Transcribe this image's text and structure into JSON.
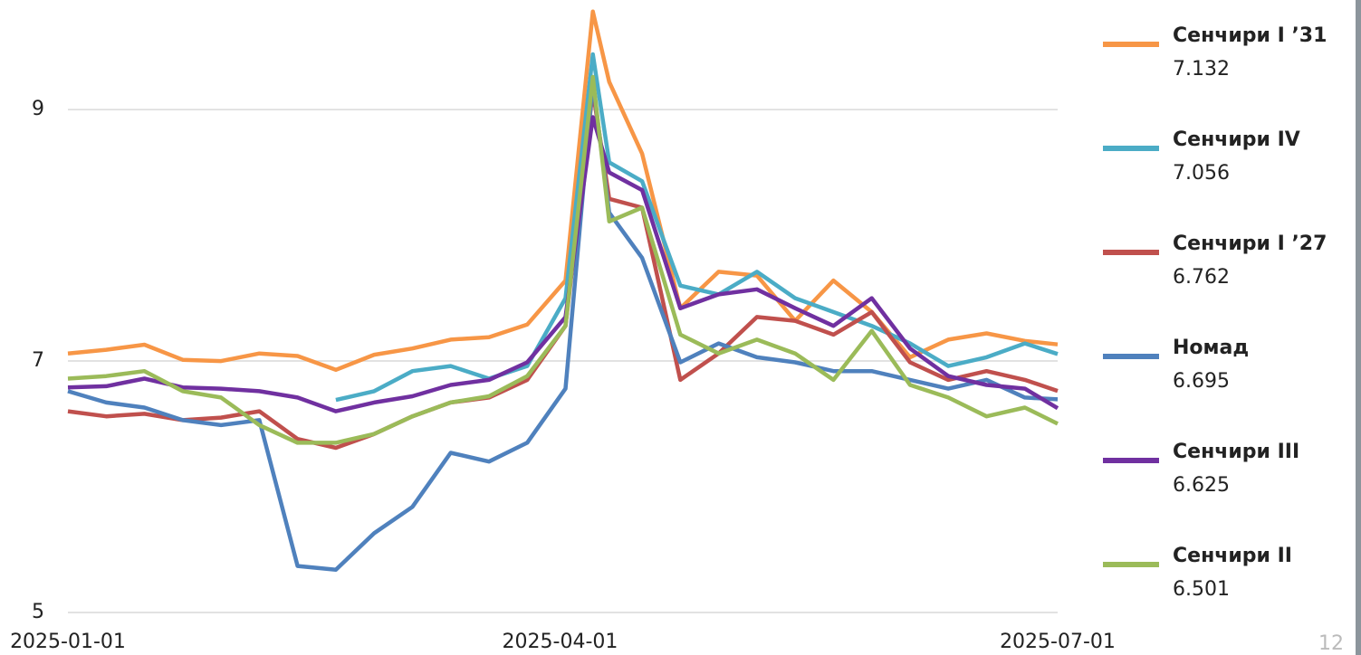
{
  "chart_data": {
    "type": "line",
    "x": [
      "2025-01-01",
      "2025-01-08",
      "2025-01-15",
      "2025-01-22",
      "2025-01-29",
      "2025-02-05",
      "2025-02-12",
      "2025-02-19",
      "2025-02-26",
      "2025-03-05",
      "2025-03-12",
      "2025-03-19",
      "2025-03-26",
      "2025-04-02",
      "2025-04-07",
      "2025-04-10",
      "2025-04-16",
      "2025-04-23",
      "2025-04-30",
      "2025-05-07",
      "2025-05-14",
      "2025-05-21",
      "2025-05-28",
      "2025-06-04",
      "2025-06-11",
      "2025-06-18",
      "2025-06-25",
      "2025-07-01"
    ],
    "xlim": [
      "2025-01-01",
      "2025-07-01"
    ],
    "xticks": [
      "2025-01-01",
      "2025-04-01",
      "2025-07-01"
    ],
    "ylim": [
      5,
      9.85
    ],
    "yticks": [
      5,
      7,
      9
    ],
    "grid": true,
    "series": [
      {
        "name": "Сенчири I ’31",
        "color": "#f79646",
        "values": [
          7.06,
          7.09,
          7.13,
          7.01,
          7.0,
          7.06,
          7.04,
          6.93,
          7.05,
          7.1,
          7.17,
          7.19,
          7.29,
          7.64,
          9.78,
          9.22,
          8.65,
          7.42,
          7.71,
          7.68,
          7.32,
          7.64,
          7.39,
          7.03,
          7.17,
          7.22,
          7.16,
          7.132
        ]
      },
      {
        "name": "Сенчири IV",
        "color": "#4bacc6",
        "values": [
          null,
          null,
          null,
          null,
          null,
          null,
          null,
          6.69,
          6.76,
          6.92,
          6.96,
          6.86,
          6.96,
          7.5,
          9.44,
          8.58,
          8.43,
          7.6,
          7.53,
          7.71,
          7.5,
          7.39,
          7.28,
          7.14,
          6.96,
          7.03,
          7.14,
          7.056
        ]
      },
      {
        "name": "Сенчири I ’27",
        "color": "#c0504d",
        "values": [
          6.6,
          6.56,
          6.58,
          6.53,
          6.55,
          6.6,
          6.38,
          6.31,
          6.42,
          6.56,
          6.67,
          6.71,
          6.85,
          7.28,
          9.15,
          8.29,
          8.22,
          6.85,
          7.06,
          7.35,
          7.32,
          7.21,
          7.39,
          6.99,
          6.85,
          6.92,
          6.85,
          6.762
        ]
      },
      {
        "name": "Номад",
        "color": "#4f81bd",
        "values": [
          6.76,
          6.67,
          6.63,
          6.53,
          6.49,
          6.53,
          5.37,
          5.34,
          5.63,
          5.84,
          6.27,
          6.2,
          6.35,
          6.78,
          9.22,
          8.18,
          7.82,
          6.99,
          7.14,
          7.03,
          6.99,
          6.92,
          6.92,
          6.85,
          6.78,
          6.85,
          6.71,
          6.695
        ]
      },
      {
        "name": "Сенчири III",
        "color": "#7030a0",
        "values": [
          6.79,
          6.8,
          6.86,
          6.79,
          6.78,
          6.76,
          6.71,
          6.6,
          6.67,
          6.72,
          6.81,
          6.85,
          6.99,
          7.35,
          8.94,
          8.5,
          8.36,
          7.42,
          7.53,
          7.57,
          7.42,
          7.28,
          7.5,
          7.1,
          6.88,
          6.81,
          6.78,
          6.625
        ]
      },
      {
        "name": "Сенчири II",
        "color": "#9bbb59",
        "values": [
          6.86,
          6.88,
          6.92,
          6.76,
          6.71,
          6.49,
          6.35,
          6.35,
          6.42,
          6.56,
          6.67,
          6.72,
          6.88,
          7.28,
          9.26,
          8.11,
          8.22,
          7.21,
          7.06,
          7.17,
          7.06,
          6.85,
          7.24,
          6.81,
          6.71,
          6.56,
          6.63,
          6.501
        ]
      }
    ]
  },
  "page_number": "12"
}
